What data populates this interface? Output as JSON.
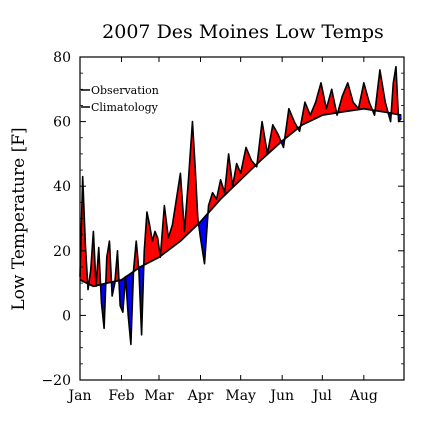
{
  "chart_data": {
    "type": "area",
    "title": "2007 Des Moines Low Temps",
    "xlabel": "",
    "ylabel": "Low Temperature [F]",
    "ylim": [
      -20,
      80
    ],
    "yticks": [
      -20,
      0,
      20,
      40,
      60,
      80
    ],
    "xlim": [
      0,
      242
    ],
    "x_tick_labels": [
      "Jan",
      "Feb",
      "Mar",
      "Apr",
      "May",
      "Jun",
      "Jul",
      "Aug"
    ],
    "x_tick_days": [
      0,
      31,
      59,
      90,
      120,
      151,
      181,
      212
    ],
    "legend": {
      "placement": "top-left",
      "entries": [
        "Observation",
        "Climatology"
      ]
    },
    "grid": false,
    "colors": {
      "above": "#ff0000",
      "below": "#0000ff",
      "line": "#000000"
    },
    "series": [
      {
        "name": "Observation",
        "x": [
          0,
          2,
          4,
          6,
          8,
          10,
          12,
          14,
          16,
          18,
          20,
          22,
          24,
          26,
          28,
          30,
          32,
          34,
          36,
          38,
          40,
          42,
          44,
          46,
          48,
          50,
          52,
          54,
          56,
          58,
          60,
          63,
          66,
          69,
          72,
          75,
          78,
          81,
          84,
          86,
          88,
          90,
          93,
          96,
          99,
          102,
          105,
          108,
          111,
          114,
          117,
          120,
          124,
          128,
          132,
          136,
          140,
          144,
          148,
          152,
          156,
          160,
          164,
          168,
          172,
          176,
          180,
          184,
          188,
          192,
          196,
          200,
          204,
          208,
          212,
          216,
          220,
          224,
          228,
          232,
          234,
          236,
          238,
          240
        ],
        "values": [
          12,
          43,
          22,
          8,
          14,
          26,
          9,
          21,
          4,
          -4,
          18,
          23,
          6,
          10,
          20,
          3,
          1,
          12,
          0,
          -9,
          14,
          23,
          14,
          -6,
          20,
          32,
          28,
          23,
          26,
          24,
          18,
          34,
          24,
          28,
          36,
          44,
          26,
          42,
          60,
          46,
          30,
          24,
          16,
          34,
          38,
          36,
          42,
          38,
          50,
          40,
          47,
          44,
          52,
          48,
          46,
          60,
          50,
          59,
          56,
          52,
          64,
          60,
          57,
          66,
          62,
          66,
          72,
          64,
          70,
          62,
          68,
          72,
          66,
          64,
          72,
          66,
          62,
          76,
          66,
          60,
          72,
          77,
          60,
          61
        ]
      },
      {
        "name": "Climatology",
        "x": [
          0,
          10,
          20,
          31,
          45,
          59,
          75,
          90,
          105,
          120,
          135,
          151,
          166,
          181,
          196,
          212,
          227,
          240
        ],
        "values": [
          11,
          9,
          10,
          11,
          15,
          18,
          23,
          29,
          36,
          42,
          48,
          54,
          59,
          62,
          63,
          64,
          63,
          62
        ]
      }
    ]
  }
}
